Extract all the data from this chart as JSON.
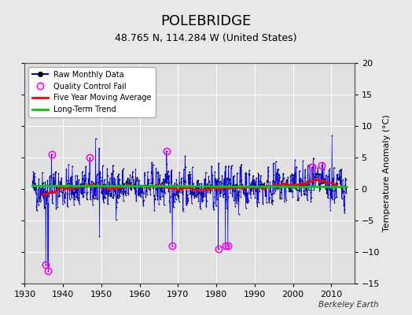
{
  "title": "POLEBRIDGE",
  "subtitle": "48.765 N, 114.284 W (United States)",
  "ylabel": "Temperature Anomaly (°C)",
  "watermark": "Berkeley Earth",
  "xlim": [
    1930,
    2016
  ],
  "ylim": [
    -15,
    20
  ],
  "yticks": [
    -15,
    -10,
    -5,
    0,
    5,
    10,
    15,
    20
  ],
  "xticks": [
    1930,
    1940,
    1950,
    1960,
    1970,
    1980,
    1990,
    2000,
    2010
  ],
  "background_color": "#e8e8e8",
  "plot_bg_color": "#e0e0e0",
  "raw_line_color": "#0000ff",
  "raw_dot_color": "#000000",
  "qc_fail_color": "#ff00ff",
  "moving_avg_color": "#ff0000",
  "trend_color": "#00cc00",
  "title_fontsize": 13,
  "subtitle_fontsize": 9,
  "seed": 42
}
